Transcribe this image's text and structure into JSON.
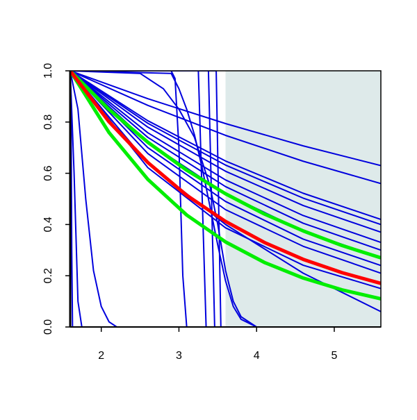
{
  "chart_data": {
    "type": "line",
    "xlim": [
      1.6,
      5.6
    ],
    "ylim": [
      0,
      1
    ],
    "xticks": [
      2,
      3,
      4,
      5
    ],
    "yticks": [
      {
        "value": 0,
        "label": "0.0"
      },
      0.2,
      0.4,
      0.6,
      0.8,
      {
        "value": 1,
        "label": "1.0"
      }
    ],
    "shade": {
      "xlim": [
        3.6,
        5.6
      ],
      "color": "#deeaea"
    },
    "series": [
      {
        "color": "#0000dd",
        "linewidth": 2,
        "x": [
          1.6,
          2.6,
          3.6,
          4.6,
          5.6
        ],
        "values": [
          1,
          0.891,
          0.794,
          0.707,
          0.63
        ]
      },
      {
        "color": "#0000dd",
        "linewidth": 2,
        "x": [
          1.6,
          2.6,
          3.6,
          4.6,
          5.6
        ],
        "values": [
          1,
          0.865,
          0.748,
          0.647,
          0.56
        ]
      },
      {
        "color": "#0000dd",
        "linewidth": 2,
        "x": [
          1.6,
          2.6,
          3.6,
          4.6,
          5.6
        ],
        "values": [
          1,
          0.805,
          0.648,
          0.522,
          0.42
        ]
      },
      {
        "color": "#0000dd",
        "linewidth": 2,
        "x": [
          1.6,
          2.6,
          3.6,
          4.6,
          5.6
        ],
        "values": [
          1,
          0.795,
          0.632,
          0.503,
          0.4
        ]
      },
      {
        "color": "#0000dd",
        "linewidth": 2,
        "x": [
          1.6,
          2.6,
          3.6,
          4.6,
          5.6
        ],
        "values": [
          1,
          0.78,
          0.608,
          0.474,
          0.37
        ]
      },
      {
        "color": "#0000dd",
        "linewidth": 2,
        "x": [
          1.6,
          2.6,
          3.6,
          4.6,
          5.6
        ],
        "values": [
          1,
          0.758,
          0.574,
          0.435,
          0.33
        ]
      },
      {
        "color": "#0000dd",
        "linewidth": 2,
        "x": [
          1.6,
          2.6,
          3.6,
          4.6,
          5.6
        ],
        "values": [
          1,
          0.74,
          0.548,
          0.405,
          0.3
        ]
      },
      {
        "color": "#0000dd",
        "linewidth": 2,
        "x": [
          1.6,
          2.6,
          3.6,
          4.6,
          5.6
        ],
        "values": [
          1,
          0.721,
          0.52,
          0.375,
          0.27
        ]
      },
      {
        "color": "#0000dd",
        "linewidth": 2,
        "x": [
          1.6,
          2.6,
          3.6,
          4.6,
          5.6
        ],
        "values": [
          1,
          0.7,
          0.49,
          0.343,
          0.24
        ]
      },
      {
        "color": "#0000dd",
        "linewidth": 2,
        "x": [
          1.6,
          2.6,
          3.6,
          4.6,
          5.6
        ],
        "values": [
          1,
          0.677,
          0.458,
          0.315,
          0.21
        ]
      },
      {
        "color": "#0000dd",
        "linewidth": 2,
        "x": [
          1.6,
          2.6,
          3.6,
          4.6,
          5.6
        ],
        "values": [
          1,
          0.622,
          0.387,
          0.241,
          0.15
        ]
      },
      {
        "color": "#0000dd",
        "linewidth": 2,
        "x": [
          1.6,
          2.6,
          3.6,
          4.6,
          5.6
        ],
        "values": [
          1,
          0.64,
          0.4,
          0.21,
          0.06
        ]
      },
      {
        "color": "#0000dd",
        "linewidth": 2,
        "x": [
          1.6,
          1.61,
          1.62,
          1.63,
          5.6
        ],
        "values": [
          1,
          0.9,
          0.3,
          0,
          0
        ]
      },
      {
        "color": "#0000dd",
        "linewidth": 2,
        "x": [
          1.6,
          1.65,
          1.7,
          1.75,
          5.6
        ],
        "values": [
          1,
          0.6,
          0.1,
          0,
          0
        ]
      },
      {
        "color": "#0000dd",
        "linewidth": 2,
        "x": [
          1.6,
          1.7,
          1.8,
          1.9,
          2.0,
          2.1,
          2.2,
          5.6
        ],
        "values": [
          1,
          0.85,
          0.5,
          0.22,
          0.08,
          0.02,
          0,
          0
        ]
      },
      {
        "color": "#0000dd",
        "linewidth": 2,
        "x": [
          1.6,
          2.9,
          2.95,
          3.0,
          3.05,
          3.1,
          5.6
        ],
        "values": [
          1,
          1,
          0.97,
          0.7,
          0.2,
          0,
          0
        ]
      },
      {
        "color": "#0000dd",
        "linewidth": 2,
        "x": [
          1.6,
          2.9,
          3.0,
          3.1,
          3.2,
          3.3,
          3.4,
          3.5,
          3.6,
          3.7,
          3.8,
          4.0,
          5.6
        ],
        "values": [
          1,
          0.99,
          0.93,
          0.85,
          0.75,
          0.62,
          0.47,
          0.32,
          0.18,
          0.08,
          0.03,
          0,
          0
        ]
      },
      {
        "color": "#0000dd",
        "linewidth": 2,
        "x": [
          1.6,
          2.5,
          2.8,
          3.0,
          3.2,
          3.4,
          3.5,
          3.6,
          3.7,
          3.8,
          4.0,
          5.6
        ],
        "values": [
          1,
          0.99,
          0.93,
          0.85,
          0.74,
          0.55,
          0.4,
          0.22,
          0.1,
          0.04,
          0,
          0
        ]
      },
      {
        "color": "#0000dd",
        "linewidth": 2,
        "x": [
          1.6,
          3.25,
          3.3,
          3.35,
          5.6
        ],
        "values": [
          1,
          1,
          0.5,
          0,
          0
        ]
      },
      {
        "color": "#0000dd",
        "linewidth": 2,
        "x": [
          1.6,
          3.38,
          3.42,
          3.46,
          5.6
        ],
        "values": [
          1,
          1,
          0.5,
          0,
          0
        ]
      },
      {
        "color": "#0000dd",
        "linewidth": 2,
        "x": [
          1.6,
          3.48,
          3.51,
          3.54,
          5.6
        ],
        "values": [
          1,
          1,
          0.5,
          0,
          0
        ]
      },
      {
        "color": "#00ee00",
        "linewidth": 5,
        "x": [
          1.6,
          2.1,
          2.6,
          3.1,
          3.6,
          4.1,
          4.6,
          5.1,
          5.6
        ],
        "values": [
          1,
          0.849,
          0.721,
          0.612,
          0.52,
          0.441,
          0.375,
          0.318,
          0.27
        ]
      },
      {
        "color": "#00ee00",
        "linewidth": 5,
        "x": [
          1.6,
          2.1,
          2.6,
          3.1,
          3.6,
          4.1,
          4.6,
          5.1,
          5.6
        ],
        "values": [
          1,
          0.759,
          0.576,
          0.437,
          0.332,
          0.252,
          0.191,
          0.145,
          0.11
        ]
      },
      {
        "color": "#ff0000",
        "linewidth": 5,
        "x": [
          1.6,
          2.1,
          2.6,
          3.1,
          3.6,
          4.1,
          4.6,
          5.1,
          5.6
        ],
        "values": [
          1,
          0.801,
          0.642,
          0.514,
          0.412,
          0.33,
          0.264,
          0.212,
          0.17
        ]
      }
    ]
  }
}
